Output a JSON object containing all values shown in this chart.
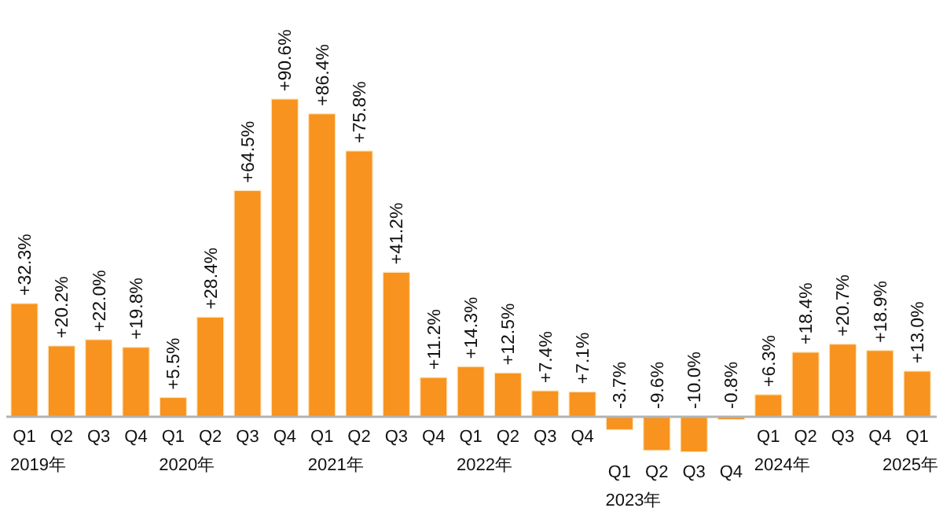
{
  "chart_data": {
    "type": "bar",
    "color": "#f7931e",
    "categories": [
      "Q1\n2019年",
      "Q2",
      "Q3",
      "Q4",
      "Q1\n2020年",
      "Q2",
      "Q3",
      "Q4",
      "Q1\n2021年",
      "Q2",
      "Q3",
      "Q4",
      "Q1\n2022年",
      "Q2",
      "Q3",
      "Q4",
      "Q1\n2023年",
      "Q2",
      "Q3",
      "Q4",
      "Q1\n2024年",
      "Q2",
      "Q3",
      "Q4",
      "Q1\n2025年"
    ],
    "values": [
      32.3,
      20.2,
      22.0,
      19.8,
      5.5,
      28.4,
      64.5,
      90.6,
      86.4,
      75.8,
      41.2,
      11.2,
      14.3,
      12.5,
      7.4,
      7.1,
      -3.7,
      -9.6,
      -10.0,
      -0.8,
      6.3,
      18.4,
      20.7,
      18.9,
      13.0
    ],
    "value_labels": [
      "+32.3%",
      "+20.2%",
      "+22.0%",
      "+19.8%",
      "+5.5%",
      "+28.4%",
      "+64.5%",
      "+90.6%",
      "+86.4%",
      "+75.8%",
      "+41.2%",
      "+11.2%",
      "+14.3%",
      "+12.5%",
      "+7.4%",
      "+7.1%",
      "-3.7%",
      "-9.6%",
      "-10.0%",
      "-0.8%",
      "+6.3%",
      "+18.4%",
      "+20.7%",
      "+18.9%",
      "+13.0%"
    ],
    "relative": false
  }
}
